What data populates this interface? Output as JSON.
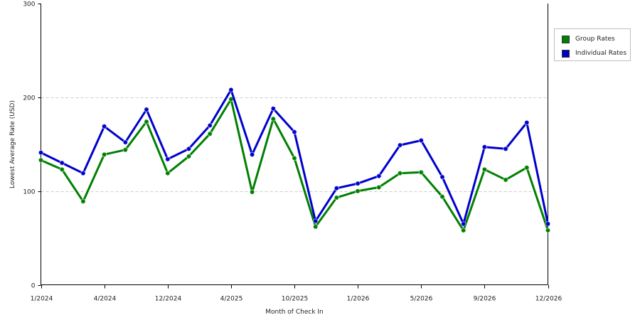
{
  "chart_data": {
    "type": "line",
    "xlabel": "Month of Check In",
    "ylabel": "Lowest Average Rate (USD)",
    "ylim": [
      0,
      300
    ],
    "yticks": [
      0,
      100,
      200,
      300
    ],
    "grid": "horizontal dashed",
    "legend_position": "right",
    "x_tick_labels": [
      "1/2024",
      "4/2024",
      "12/2024",
      "4/2025",
      "10/2025",
      "1/2026",
      "5/2026",
      "9/2026",
      "12/2026"
    ],
    "x_tick_indices": [
      0,
      3,
      6,
      9,
      12,
      15,
      18,
      21,
      24
    ],
    "point_count": 25,
    "series": [
      {
        "name": "Group Rates",
        "color": "#008000",
        "values": [
          133,
          123,
          89,
          139,
          144,
          174,
          119,
          137,
          161,
          198,
          99,
          177,
          135,
          62,
          93,
          100,
          104,
          119,
          120,
          94,
          58,
          123,
          112,
          125,
          58
        ]
      },
      {
        "name": "Individual Rates",
        "color": "#0000cc",
        "values": [
          141,
          130,
          119,
          169,
          152,
          187,
          134,
          145,
          170,
          208,
          139,
          188,
          163,
          68,
          103,
          108,
          116,
          149,
          154,
          115,
          65,
          147,
          145,
          173,
          65
        ]
      }
    ]
  }
}
